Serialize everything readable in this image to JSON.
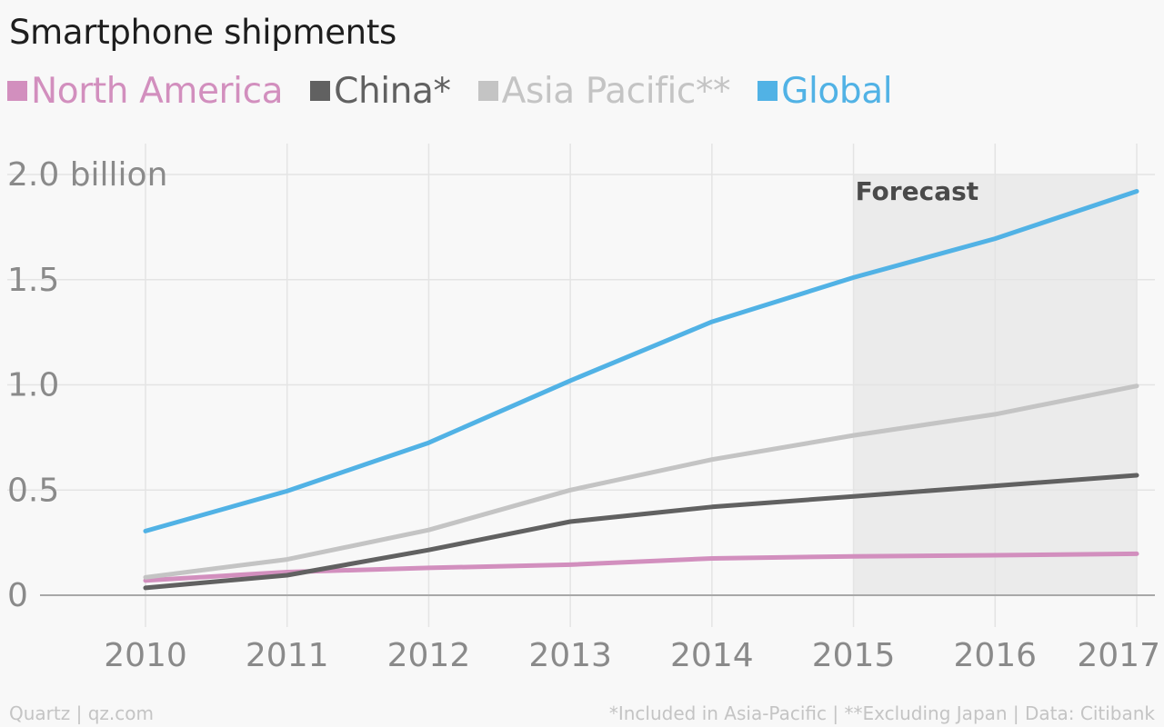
{
  "chart_data": {
    "type": "line",
    "title": "Smartphone shipments",
    "x": [
      2010,
      2011,
      2012,
      2013,
      2014,
      2015,
      2016,
      2017
    ],
    "x_tick_labels": [
      "2010",
      "2011",
      "2012",
      "2013",
      "2014",
      "2015",
      "2016",
      "2017"
    ],
    "y_ticks": [
      {
        "value": 0,
        "label": "0"
      },
      {
        "value": 0.5,
        "label": "0.5"
      },
      {
        "value": 1.0,
        "label": "1.0"
      },
      {
        "value": 1.5,
        "label": "1.5"
      },
      {
        "value": 2.0,
        "label": "2.0 billion"
      }
    ],
    "ylim": [
      0,
      2.0
    ],
    "xlim": [
      2010,
      2017
    ],
    "grid": true,
    "legend_position": "top-left",
    "forecast_region": {
      "from": 2015,
      "to": 2017,
      "label": "Forecast"
    },
    "series": [
      {
        "name": "North America",
        "color": "#d28fbe",
        "values": [
          0.07,
          0.11,
          0.13,
          0.145,
          0.175,
          0.185,
          0.19,
          0.197
        ]
      },
      {
        "name": "China*",
        "color": "#616161",
        "values": [
          0.035,
          0.095,
          0.215,
          0.35,
          0.42,
          0.47,
          0.52,
          0.57
        ]
      },
      {
        "name": "Asia Pacific**",
        "color": "#c4c4c4",
        "values": [
          0.085,
          0.17,
          0.31,
          0.5,
          0.645,
          0.76,
          0.86,
          0.995
        ]
      },
      {
        "name": "Global",
        "color": "#51b2e5",
        "values": [
          0.305,
          0.495,
          0.725,
          1.02,
          1.3,
          1.51,
          1.695,
          1.92
        ]
      }
    ]
  },
  "footer": {
    "source": "Quartz | qz.com",
    "notes": "*Included in Asia-Pacific | **Excluding Japan | Data: Citibank"
  }
}
